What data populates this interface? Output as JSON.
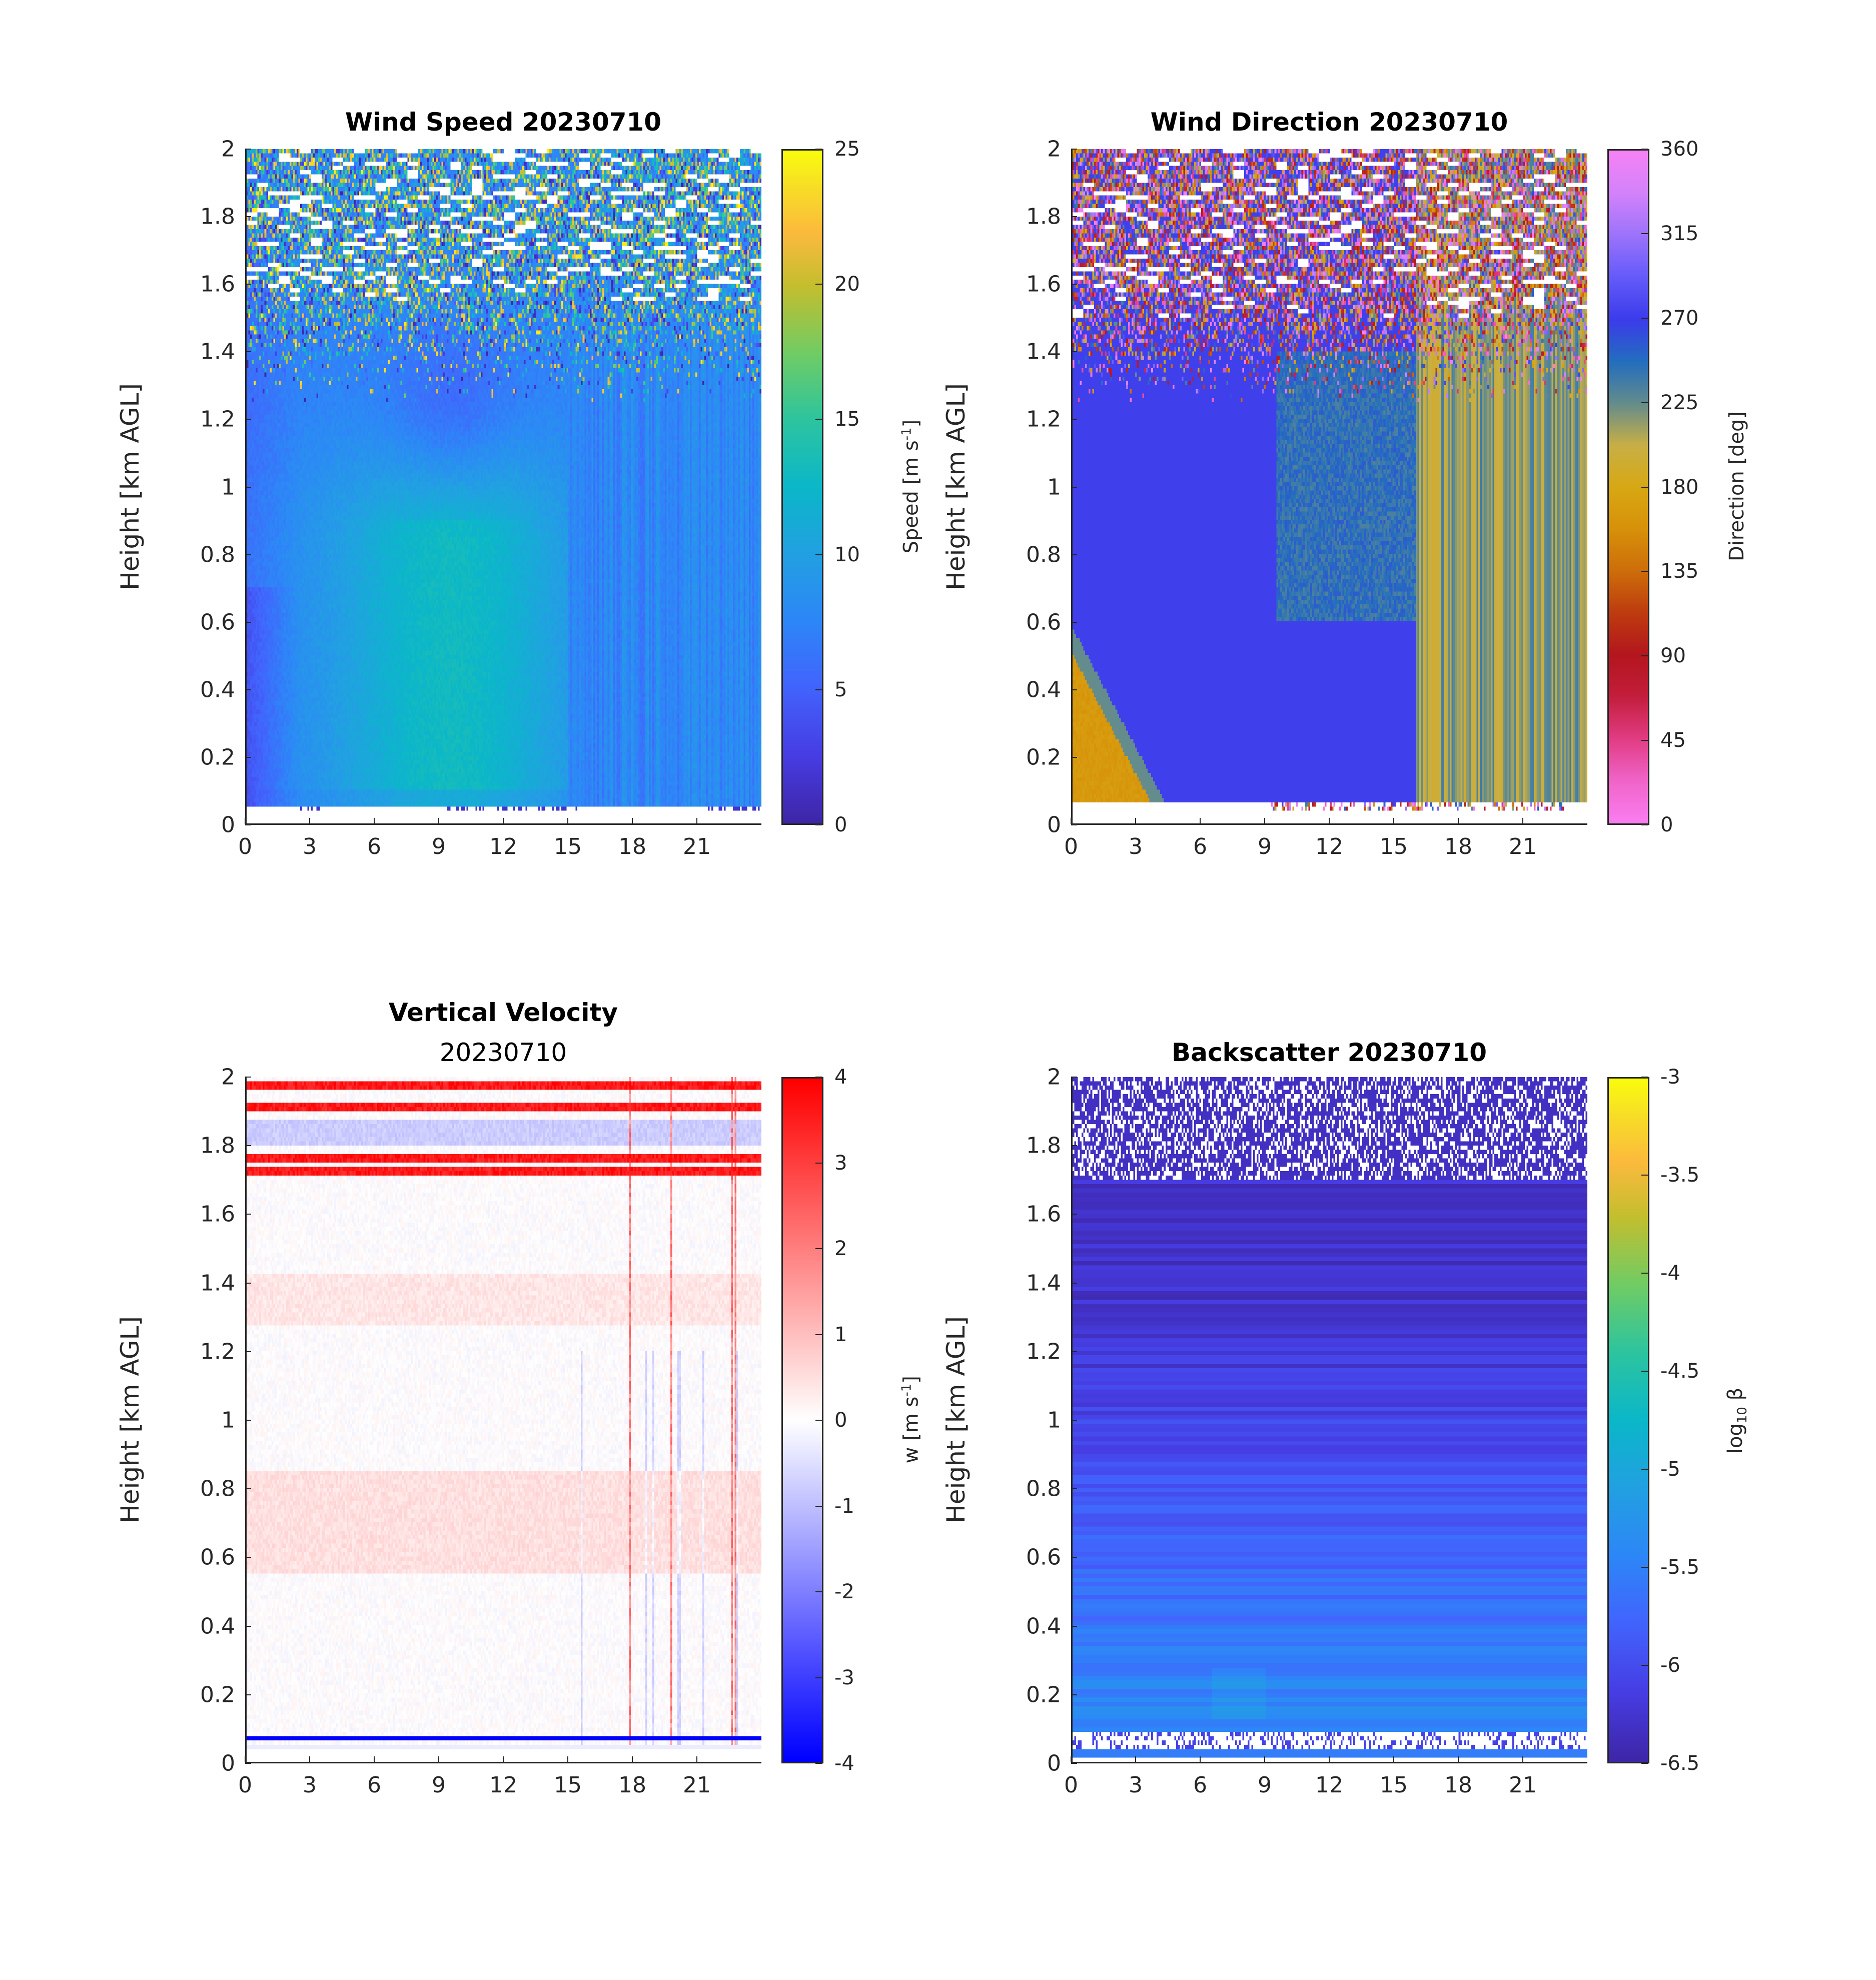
{
  "figure": {
    "date": "20230710"
  },
  "chart_data": [
    {
      "id": "wind-speed",
      "type": "heatmap",
      "title": "Wind Speed 20230710",
      "subtitle": "",
      "xlabel": "",
      "ylabel": "Height [km AGL]",
      "xlim": [
        0,
        24
      ],
      "ylim": [
        0,
        2
      ],
      "xticks": [
        "0",
        "3",
        "6",
        "9",
        "12",
        "15",
        "18",
        "21"
      ],
      "xtick_values": [
        0,
        3,
        6,
        9,
        12,
        15,
        18,
        21
      ],
      "yticks": [
        "0",
        "0.2",
        "0.4",
        "0.6",
        "0.8",
        "1",
        "1.2",
        "1.4",
        "1.6",
        "1.8",
        "2"
      ],
      "ytick_values": [
        0,
        0.2,
        0.4,
        0.6,
        0.8,
        1.0,
        1.2,
        1.4,
        1.6,
        1.8,
        2.0
      ],
      "colorbar": {
        "label": "Speed [m s-1]",
        "label_main": "Speed [m s",
        "label_sup": "-1",
        "label_end": "]",
        "colormap": "parula",
        "clim": [
          0,
          25
        ],
        "ticks": [
          "0",
          "5",
          "10",
          "15",
          "20",
          "25"
        ],
        "tick_values": [
          0,
          5,
          10,
          15,
          20,
          25
        ]
      },
      "description": "Low-level jet of ~10-12 m/s between 3-15 h below 0.8 km; weaker 2-4 m/s near surface 0-3 h; noisy data above 1.4 km with gaps; lowest gate ~0.06 km",
      "features": {
        "lowest_valid_km": 0.06,
        "noisy_above_km": 1.4,
        "jet_core_ms": 11,
        "background_ms": 7
      }
    },
    {
      "id": "wind-direction",
      "type": "heatmap",
      "title": "Wind Direction 20230710",
      "subtitle": "",
      "xlabel": "",
      "ylabel": "Height [km AGL]",
      "xlim": [
        0,
        24
      ],
      "ylim": [
        0,
        2
      ],
      "xticks": [
        "0",
        "3",
        "6",
        "9",
        "12",
        "15",
        "18",
        "21"
      ],
      "xtick_values": [
        0,
        3,
        6,
        9,
        12,
        15,
        18,
        21
      ],
      "yticks": [
        "0",
        "0.2",
        "0.4",
        "0.6",
        "0.8",
        "1",
        "1.2",
        "1.4",
        "1.6",
        "1.8",
        "2"
      ],
      "ytick_values": [
        0,
        0.2,
        0.4,
        0.6,
        0.8,
        1.0,
        1.2,
        1.4,
        1.6,
        1.8,
        2.0
      ],
      "colorbar": {
        "label": "Direction [deg]",
        "label_main": "Direction [deg]",
        "label_sup": "",
        "label_end": "",
        "colormap": "cyclic-direction",
        "clim": [
          0,
          360
        ],
        "ticks": [
          "0",
          "45",
          "90",
          "135",
          "180",
          "225",
          "270",
          "315",
          "360"
        ],
        "tick_values": [
          0,
          45,
          90,
          135,
          180,
          225,
          270,
          315,
          360
        ]
      },
      "description": "Southerly (~160-180 deg) flow in lowest 0.5 km from 0-4 h; westerly (~270 deg) most of the day; south-southwesterly (~200-230 deg) streaks after 16 h; noisy above 1.3 km",
      "features": {
        "early_low_level_deg": 165,
        "dominant_deg": 272,
        "late_day_deg": 215
      }
    },
    {
      "id": "vertical-velocity",
      "type": "heatmap",
      "title": "Vertical Velocity",
      "subtitle": "20230710",
      "xlabel": "",
      "ylabel": "Height [km AGL]",
      "xlim": [
        0,
        24
      ],
      "ylim": [
        0,
        2
      ],
      "xticks": [
        "0",
        "3",
        "6",
        "9",
        "12",
        "15",
        "18",
        "21"
      ],
      "xtick_values": [
        0,
        3,
        6,
        9,
        12,
        15,
        18,
        21
      ],
      "yticks": [
        "0",
        "0.2",
        "0.4",
        "0.6",
        "0.8",
        "1",
        "1.2",
        "1.4",
        "1.6",
        "1.8",
        "2"
      ],
      "ytick_values": [
        0,
        0.2,
        0.4,
        0.6,
        0.8,
        1.0,
        1.2,
        1.4,
        1.6,
        1.8,
        2.0
      ],
      "colorbar": {
        "label": "w [m s-1]",
        "label_main": "w [m s",
        "label_sup": "-1",
        "label_end": "]",
        "colormap": "blue-white-red",
        "clim": [
          -4,
          4
        ],
        "ticks": [
          "-4",
          "-3",
          "-2",
          "-1",
          "0",
          "1",
          "2",
          "3",
          "4"
        ],
        "tick_values": [
          -4,
          -3,
          -2,
          -1,
          0,
          1,
          2,
          3,
          4
        ]
      },
      "description": "Near-zero w most of the day; strong positive (red) artifact bands at ~1.9 and ~1.75 km; strong negative (blue) band at ~0.07 km; convective updraft/downdraft streaks 15-23 h",
      "features": {
        "positive_bands_km": [
          1.97,
          1.91,
          1.76,
          1.72
        ],
        "negative_band_km": 0.07,
        "weak_positive_layer_km": [
          0.55,
          0.85
        ],
        "convective_hours": [
          15,
          23
        ]
      }
    },
    {
      "id": "backscatter",
      "type": "heatmap",
      "title": "Backscatter 20230710",
      "subtitle": "",
      "xlabel": "",
      "ylabel": "Height [km AGL]",
      "xlim": [
        0,
        24
      ],
      "ylim": [
        0,
        2
      ],
      "xticks": [
        "0",
        "3",
        "6",
        "9",
        "12",
        "15",
        "18",
        "21"
      ],
      "xtick_values": [
        0,
        3,
        6,
        9,
        12,
        15,
        18,
        21
      ],
      "yticks": [
        "0",
        "0.2",
        "0.4",
        "0.6",
        "0.8",
        "1",
        "1.2",
        "1.4",
        "1.6",
        "1.8",
        "2"
      ],
      "ytick_values": [
        0,
        0.2,
        0.4,
        0.6,
        0.8,
        1.0,
        1.2,
        1.4,
        1.6,
        1.8,
        2.0
      ],
      "colorbar": {
        "label": "log10 β",
        "label_main": "log",
        "label_sub": "10",
        "label_end": " β",
        "colormap": "parula",
        "clim": [
          -6.5,
          -3
        ],
        "ticks": [
          "-6.5",
          "-6",
          "-5.5",
          "-5",
          "-4.5",
          "-4",
          "-3.5",
          "-3"
        ],
        "tick_values": [
          -6.5,
          -6,
          -5.5,
          -5,
          -4.5,
          -4,
          -3.5,
          -3
        ]
      },
      "description": "log10 backscatter increasing toward surface from ~-6.3 aloft to ~-5.3 near 0.1 km; gaps above 1.7 km; near-ground gap 0.03-0.09 km",
      "features": {
        "aloft_value": -6.3,
        "boundary_layer_value": -5.4,
        "gap_above_km": 1.7
      }
    }
  ]
}
